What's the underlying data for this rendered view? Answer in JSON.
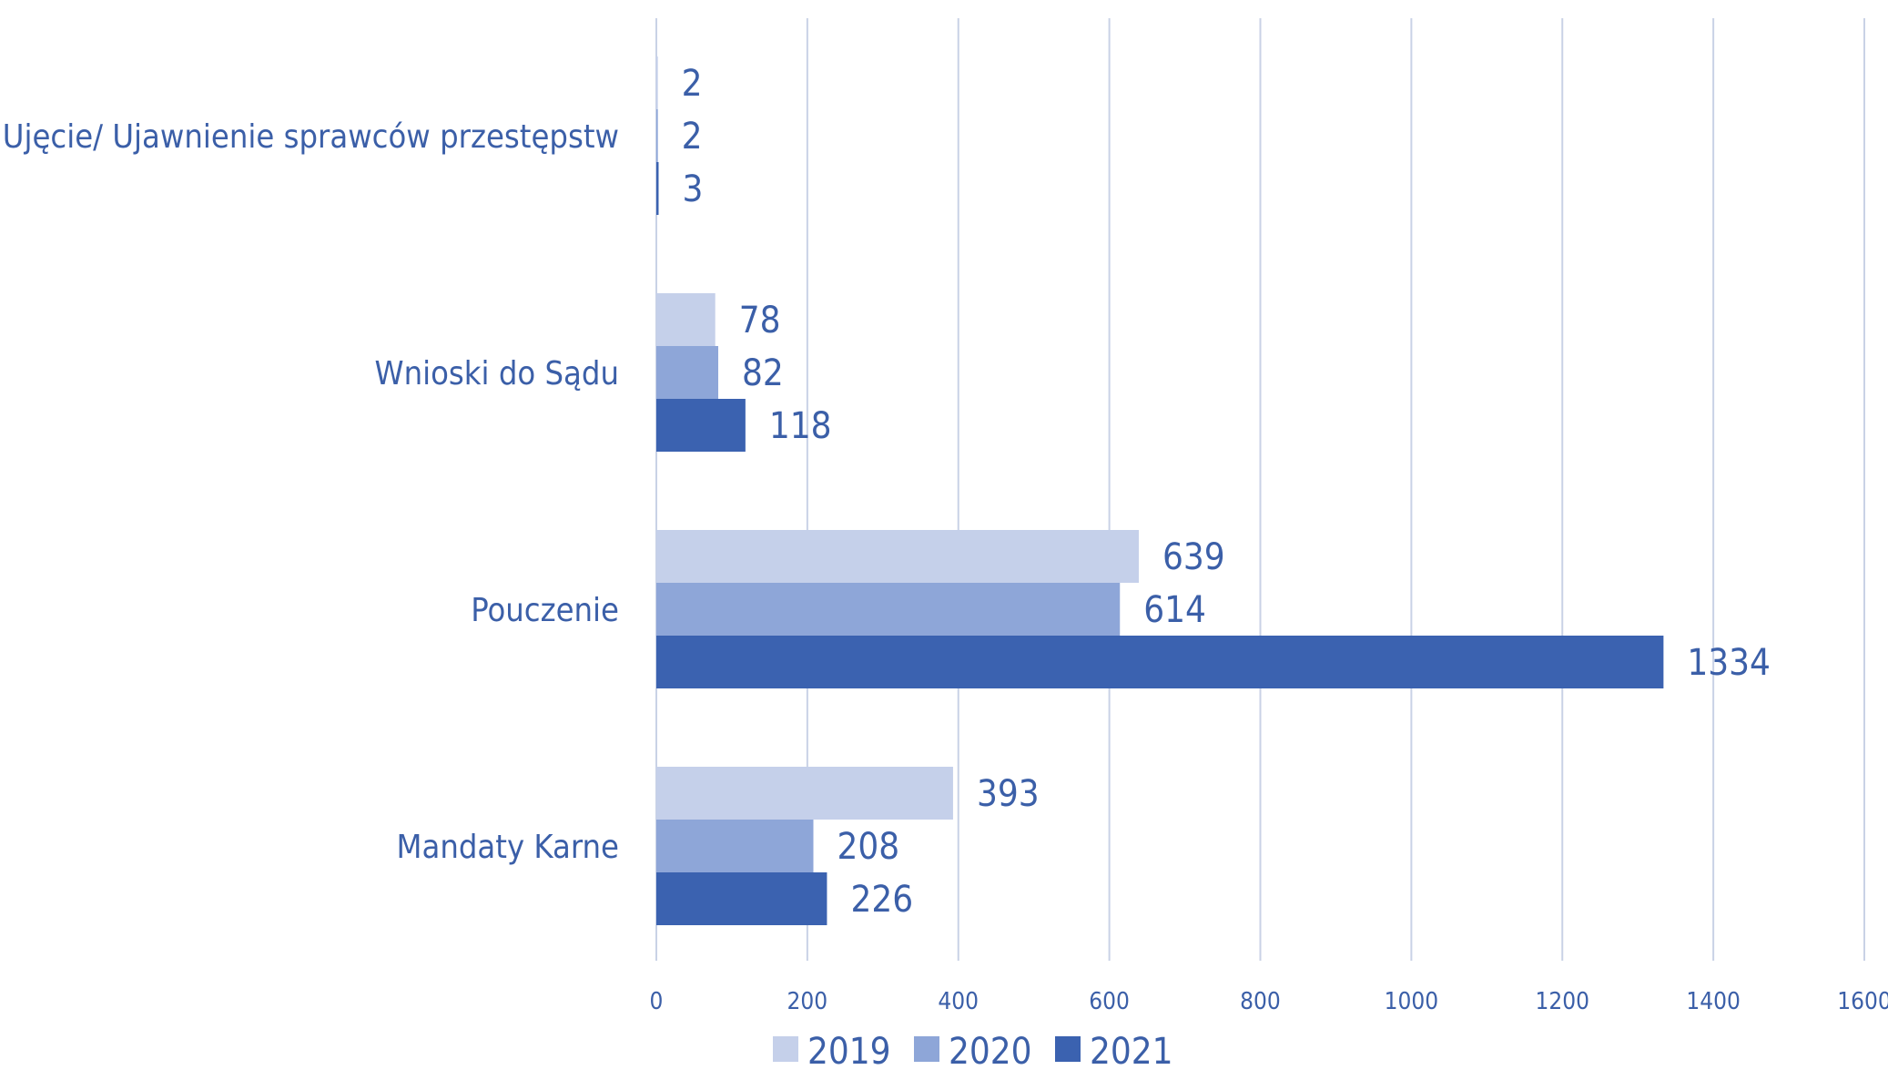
{
  "chart_data": {
    "type": "bar",
    "orientation": "horizontal",
    "categories": [
      "Ujęcie/ Ujawnienie sprawców przestępstw",
      "Wnioski do Sądu",
      "Pouczenie",
      "Mandaty Karne"
    ],
    "series": [
      {
        "name": "2019",
        "color": "#c5d0ea",
        "values": [
          2,
          78,
          639,
          393
        ]
      },
      {
        "name": "2020",
        "color": "#8ea6d8",
        "values": [
          2,
          82,
          614,
          208
        ]
      },
      {
        "name": "2021",
        "color": "#3b62b0",
        "values": [
          3,
          118,
          1334,
          226
        ]
      }
    ],
    "xlim": [
      0,
      1600
    ],
    "xticks": [
      "0",
      "200",
      "400",
      "600",
      "800",
      "1000",
      "1200",
      "1400",
      "1600"
    ],
    "grid": true,
    "legend_position": "bottom",
    "data_labels": true
  }
}
